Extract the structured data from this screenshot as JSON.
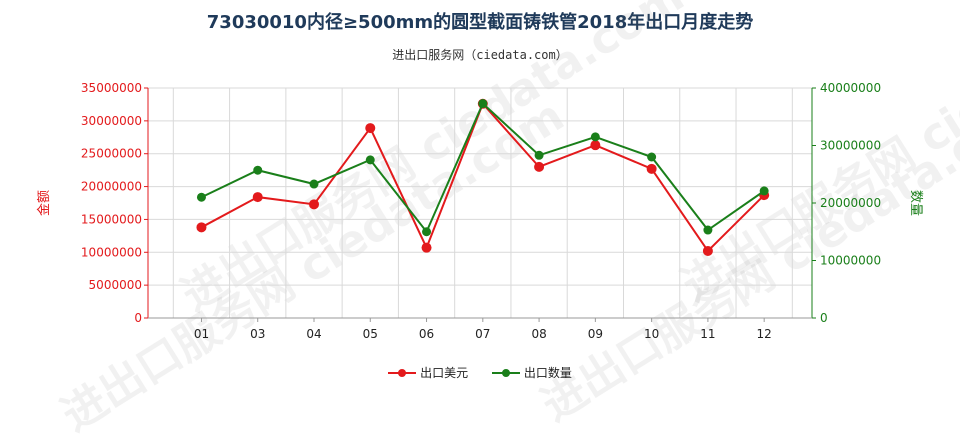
{
  "title": "73030010内径≥500mm的圆型截面铸铁管2018年出口月度走势",
  "subtitle": "进出口服务网（ciedata.com）",
  "watermark": "进出口服务网 ciedata.com",
  "colors": {
    "series1": "#e31a1c",
    "series2": "#1a7f1a",
    "axis_left": "#e31a1c",
    "axis_right": "#1a7f1a",
    "grid": "#d9d9d9",
    "title": "#1f3a5a"
  },
  "chart_data": {
    "type": "line",
    "categories": [
      "01",
      "03",
      "04",
      "05",
      "06",
      "07",
      "08",
      "09",
      "10",
      "11",
      "12"
    ],
    "y_left": {
      "label": "金额",
      "ylim": [
        0,
        35000000
      ],
      "ticks": [
        0,
        5000000,
        10000000,
        15000000,
        20000000,
        25000000,
        30000000,
        35000000
      ]
    },
    "y_right": {
      "label": "数量",
      "ylim": [
        0,
        40000000
      ],
      "ticks": [
        0,
        10000000,
        20000000,
        30000000,
        40000000
      ]
    },
    "grid": true,
    "legend_position": "bottom",
    "series": [
      {
        "name": "出口美元",
        "axis": "left",
        "values": [
          13800000,
          18400000,
          17300000,
          28900000,
          10700000,
          32600000,
          23000000,
          26300000,
          22700000,
          10200000,
          18700000
        ]
      },
      {
        "name": "出口数量",
        "axis": "right",
        "values": [
          21000000,
          25700000,
          23300000,
          27500000,
          15000000,
          37300000,
          28300000,
          31500000,
          28000000,
          15300000,
          22100000
        ]
      }
    ]
  }
}
